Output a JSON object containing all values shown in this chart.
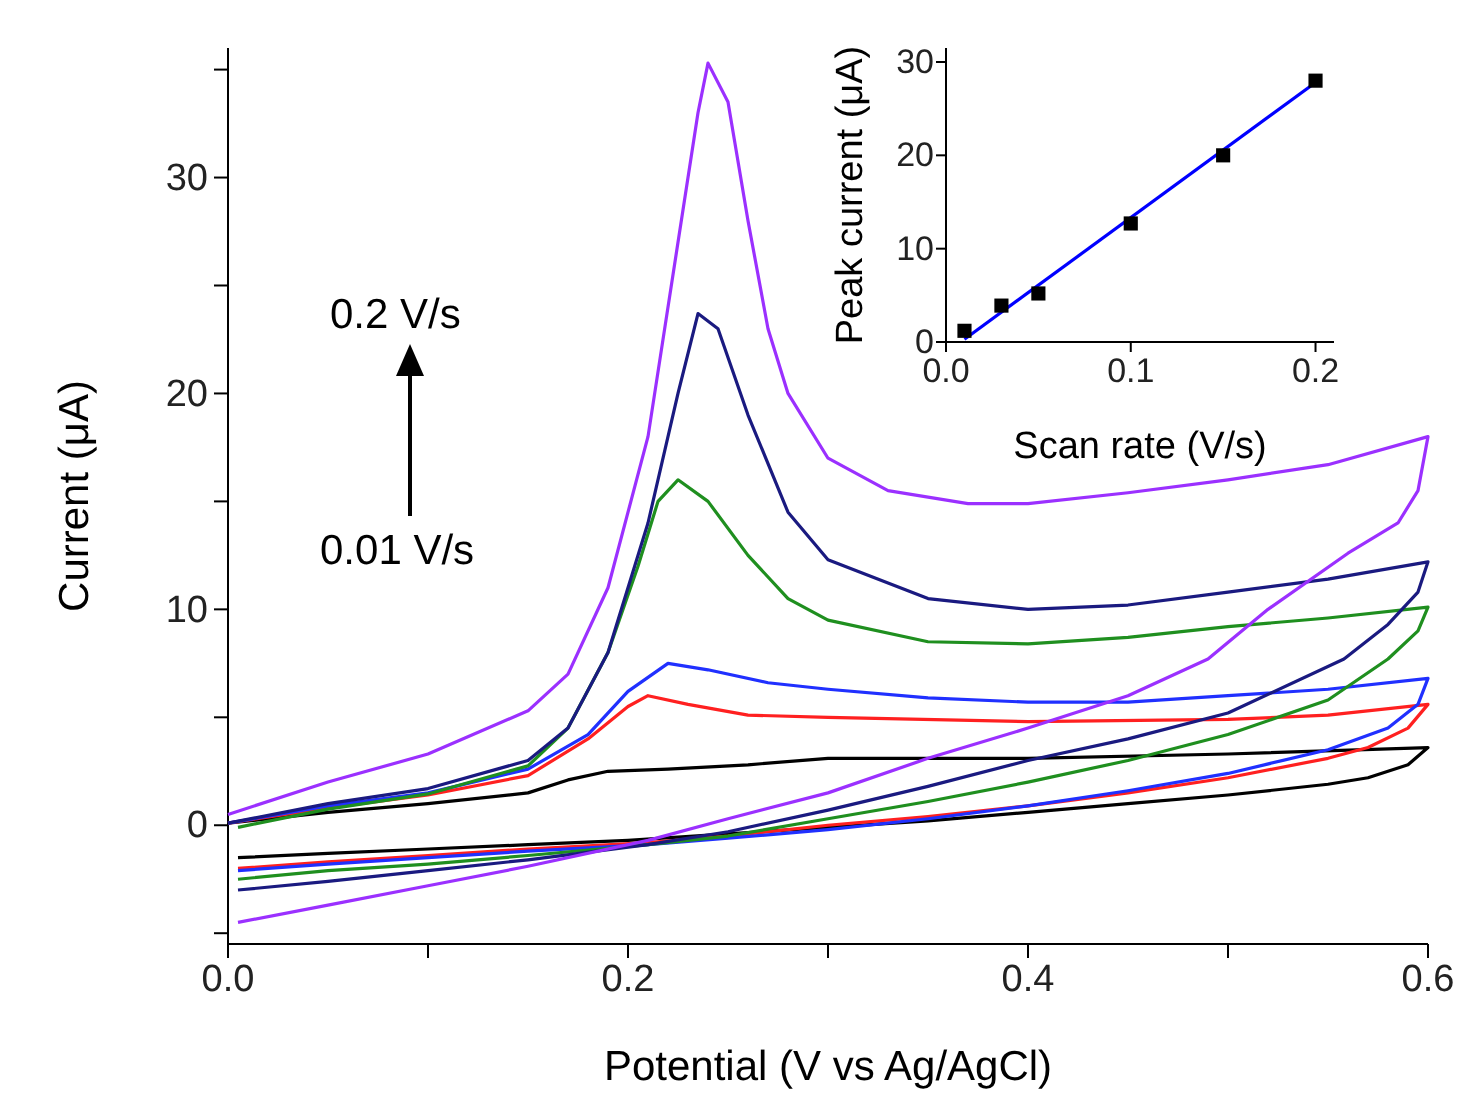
{
  "chart_data": [
    {
      "type": "line",
      "xlabel": "Potential (V vs Ag/AgCl)",
      "ylabel": "Current (μA)",
      "xlim": [
        0,
        0.6
      ],
      "ylim": [
        -5.5,
        36
      ],
      "xticks": [
        {
          "value": 0,
          "label": "0.0"
        },
        {
          "value": 0.1,
          "label": null
        },
        {
          "value": 0.2,
          "label": "0.2"
        },
        {
          "value": 0.3,
          "label": null
        },
        {
          "value": 0.4,
          "label": "0.4"
        },
        {
          "value": 0.5,
          "label": null
        },
        {
          "value": 0.6,
          "label": "0.6"
        }
      ],
      "yticks": [
        {
          "value": -5,
          "label": null
        },
        0,
        {
          "value": 5,
          "label": null
        },
        10,
        {
          "value": 15,
          "label": null
        },
        20,
        {
          "value": 25,
          "label": null
        },
        30,
        {
          "value": 35,
          "label": null
        }
      ],
      "annotations": [
        "0.2 V/s",
        "0.01 V/s"
      ],
      "grid": false,
      "line_style": "solid",
      "series": [
        {
          "color": "#000000",
          "x": [
            0,
            0.05,
            0.1,
            0.15,
            0.17,
            0.19,
            0.22,
            0.26,
            0.3,
            0.35,
            0.4,
            0.5,
            0.6,
            0.59,
            0.57,
            0.55,
            0.5,
            0.45,
            0.4,
            0.35,
            0.3,
            0.25,
            0.2,
            0.15,
            0.1,
            0.05,
            0.005
          ],
          "values": [
            0.1,
            0.6,
            1.0,
            1.5,
            2.1,
            2.5,
            2.6,
            2.8,
            3.1,
            3.1,
            3.1,
            3.3,
            3.6,
            2.8,
            2.2,
            1.9,
            1.4,
            1.0,
            0.6,
            0.2,
            -0.1,
            -0.4,
            -0.7,
            -0.9,
            -1.1,
            -1.3,
            -1.5
          ]
        },
        {
          "color": "#ff2020",
          "x": [
            0,
            0.05,
            0.1,
            0.15,
            0.18,
            0.2,
            0.21,
            0.23,
            0.26,
            0.3,
            0.4,
            0.5,
            0.55,
            0.6,
            0.59,
            0.57,
            0.55,
            0.5,
            0.45,
            0.4,
            0.35,
            0.3,
            0.25,
            0.21,
            0.15,
            0.1,
            0.05,
            0.005
          ],
          "values": [
            0.1,
            0.8,
            1.4,
            2.3,
            4.0,
            5.5,
            6.0,
            5.6,
            5.1,
            5.0,
            4.8,
            4.9,
            5.1,
            5.6,
            4.5,
            3.6,
            3.1,
            2.2,
            1.5,
            0.9,
            0.4,
            0,
            -0.5,
            -0.8,
            -1.1,
            -1.4,
            -1.7,
            -2.0
          ]
        },
        {
          "color": "#2030ff",
          "x": [
            0,
            0.05,
            0.1,
            0.15,
            0.18,
            0.2,
            0.22,
            0.24,
            0.27,
            0.3,
            0.35,
            0.4,
            0.45,
            0.5,
            0.55,
            0.6,
            0.595,
            0.58,
            0.55,
            0.5,
            0.45,
            0.4,
            0.35,
            0.3,
            0.25,
            0.21,
            0.15,
            0.1,
            0.05,
            0.005
          ],
          "values": [
            0.1,
            0.9,
            1.5,
            2.6,
            4.2,
            6.2,
            7.5,
            7.2,
            6.6,
            6.3,
            5.9,
            5.7,
            5.7,
            6.0,
            6.3,
            6.8,
            5.6,
            4.5,
            3.5,
            2.4,
            1.6,
            0.9,
            0.3,
            -0.2,
            -0.6,
            -0.9,
            -1.2,
            -1.5,
            -1.8,
            -2.1
          ]
        },
        {
          "color": "#1f8f1f",
          "x": [
            0.005,
            0.05,
            0.1,
            0.15,
            0.17,
            0.19,
            0.205,
            0.215,
            0.225,
            0.24,
            0.26,
            0.28,
            0.3,
            0.35,
            0.4,
            0.45,
            0.5,
            0.55,
            0.6,
            0.595,
            0.58,
            0.55,
            0.5,
            0.45,
            0.4,
            0.35,
            0.3,
            0.25,
            0.21,
            0.15,
            0.1,
            0.05,
            0.005
          ],
          "values": [
            -0.1,
            0.75,
            1.45,
            2.75,
            4.5,
            8,
            12,
            15,
            16,
            15,
            12.5,
            10.5,
            9.5,
            8.5,
            8.4,
            8.7,
            9.2,
            9.6,
            10.1,
            9.0,
            7.7,
            5.8,
            4.2,
            3.0,
            2.0,
            1.1,
            0.3,
            -0.5,
            -0.9,
            -1.4,
            -1.8,
            -2.1,
            -2.5
          ]
        },
        {
          "color": "#1a1a80",
          "x": [
            0,
            0.05,
            0.1,
            0.15,
            0.17,
            0.19,
            0.21,
            0.225,
            0.235,
            0.245,
            0.26,
            0.28,
            0.3,
            0.35,
            0.4,
            0.45,
            0.5,
            0.55,
            0.6,
            0.595,
            0.58,
            0.558,
            0.5,
            0.45,
            0.4,
            0.35,
            0.3,
            0.25,
            0.21,
            0.15,
            0.1,
            0.05,
            0.005
          ],
          "values": [
            0.1,
            1.0,
            1.7,
            3.0,
            4.5,
            8,
            14,
            20,
            23.7,
            23,
            19,
            14.5,
            12.3,
            10.5,
            10,
            10.2,
            10.8,
            11.4,
            12.2,
            10.8,
            9.3,
            7.7,
            5.2,
            4.0,
            3.0,
            1.8,
            0.7,
            -0.3,
            -0.9,
            -1.6,
            -2.1,
            -2.6,
            -3.0
          ]
        },
        {
          "color": "#9b30ff",
          "x": [
            0,
            0.05,
            0.1,
            0.15,
            0.17,
            0.19,
            0.21,
            0.225,
            0.235,
            0.24,
            0.25,
            0.26,
            0.27,
            0.28,
            0.3,
            0.33,
            0.37,
            0.4,
            0.45,
            0.5,
            0.55,
            0.6,
            0.595,
            0.585,
            0.56,
            0.52,
            0.49,
            0.45,
            0.4,
            0.35,
            0.3,
            0.25,
            0.21,
            0.15,
            0.1,
            0.05,
            0.005
          ],
          "values": [
            0.5,
            2.0,
            3.3,
            5.3,
            7,
            11,
            18,
            27,
            33,
            35.3,
            33.5,
            28,
            23,
            20,
            17,
            15.5,
            14.9,
            14.9,
            15.4,
            16,
            16.7,
            18,
            15.5,
            14,
            12.6,
            10,
            7.7,
            6,
            4.5,
            3.1,
            1.5,
            0.3,
            -0.7,
            -1.9,
            -2.8,
            -3.7,
            -4.5
          ]
        }
      ]
    },
    {
      "type": "scatter",
      "xlabel": "Scan rate (V/s)",
      "ylabel": "Peak current (μA)",
      "xlim": [
        0,
        0.21
      ],
      "ylim": [
        0,
        31.5
      ],
      "xticks": [
        {
          "value": 0,
          "label": "0.0"
        },
        0.1,
        0.2
      ],
      "yticks": [
        0,
        10,
        20,
        30
      ],
      "grid": false,
      "series": [
        {
          "marker": "square",
          "color": "#000000",
          "x": [
            0.01,
            0.03,
            0.05,
            0.1,
            0.15,
            0.2
          ],
          "values": [
            1.2,
            3.9,
            5.2,
            12.7,
            20,
            28
          ]
        },
        {
          "type": "line",
          "marker": "none",
          "color": "#0000ff",
          "x": [
            0.01,
            0.2
          ],
          "values": [
            0.3,
            27.8
          ]
        }
      ]
    }
  ]
}
